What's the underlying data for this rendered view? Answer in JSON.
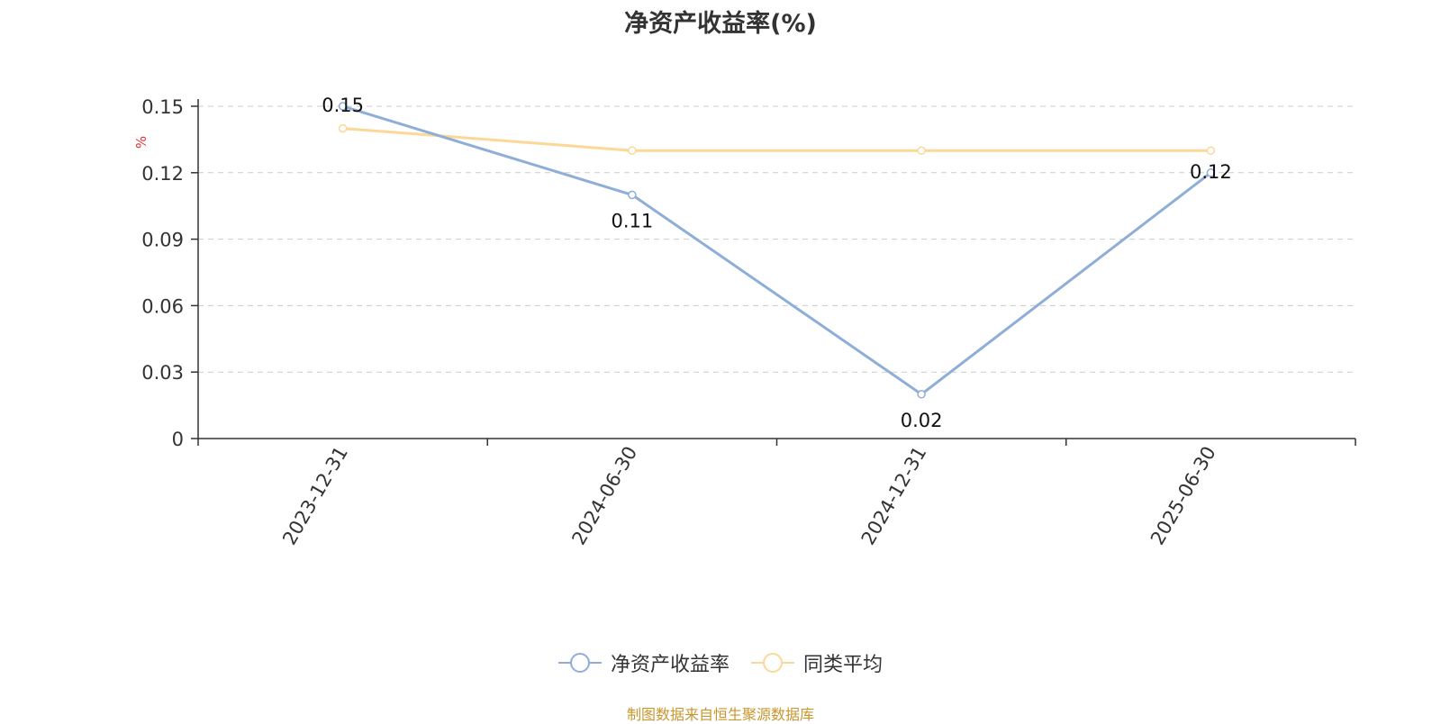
{
  "chart_data": {
    "type": "line",
    "title": "净资产收益率(%)",
    "ylabel": "%",
    "xlabel": "",
    "categories": [
      "2023-12-31",
      "2024-06-30",
      "2024-12-31",
      "2025-06-30"
    ],
    "ylim": [
      0,
      0.15
    ],
    "yticks": [
      "0",
      "0.03",
      "0.06",
      "0.09",
      "0.12",
      "0.15"
    ],
    "grid": true,
    "legend_position": "bottom",
    "series": [
      {
        "name": "净资产收益率",
        "values": [
          0.15,
          0.11,
          0.02,
          0.12
        ],
        "labels": [
          "0.15",
          "0.11",
          "0.02",
          "0.12"
        ],
        "color": "#8eaed8"
      },
      {
        "name": "同类平均",
        "values": [
          0.14,
          0.13,
          0.13,
          0.13
        ],
        "color": "#fbd896"
      }
    ]
  },
  "footer": {
    "source": "制图数据来自恒生聚源数据库"
  },
  "colors": {
    "axis": "#333333",
    "grid": "#cccccc",
    "ylabel": "#e03030",
    "source": "#c9962e"
  }
}
